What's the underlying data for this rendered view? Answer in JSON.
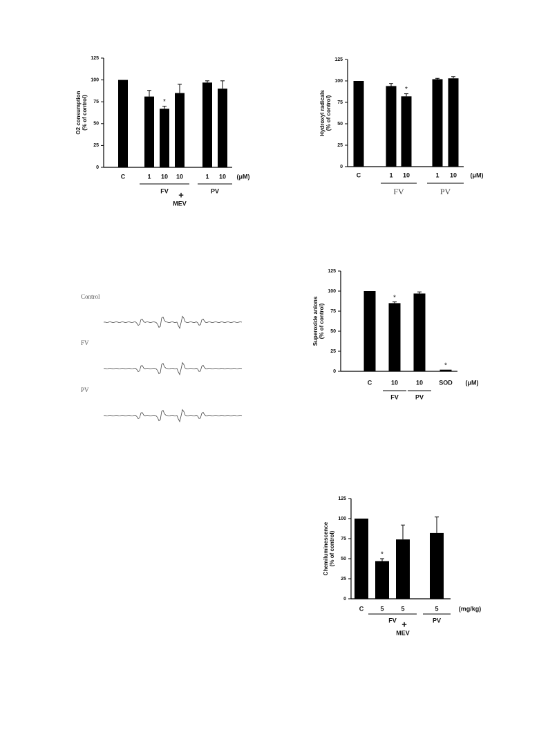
{
  "chart_data": [
    {
      "type": "bar",
      "ylabel": "O2 consumption",
      "ylabel_sub": "(% of control)",
      "categories": [
        "C",
        "1",
        "10",
        "10",
        "1",
        "10"
      ],
      "values": [
        100,
        81,
        67,
        85,
        97,
        90
      ],
      "errors": [
        null,
        7,
        3,
        10,
        2,
        9
      ],
      "value_annotations": [
        null,
        null,
        "*",
        null,
        null,
        null
      ],
      "groups": [
        "FV",
        "PV"
      ],
      "combination": {
        "symbol": "+",
        "label": "MEV"
      },
      "unit": "(μM)",
      "color": "#000000",
      "ylim": [
        0,
        125
      ],
      "yticks": [
        0,
        25,
        50,
        75,
        100,
        125
      ]
    },
    {
      "type": "bar",
      "ylabel": "Hydroxyl radicals",
      "ylabel_sub": "(% of control)",
      "categories": [
        "C",
        "1",
        "10",
        "1",
        "10"
      ],
      "values": [
        100,
        94,
        82,
        102,
        103
      ],
      "errors": [
        null,
        3,
        3,
        1,
        2
      ],
      "value_annotations": [
        null,
        null,
        "*",
        null,
        null
      ],
      "groups": [
        "FV",
        "PV"
      ],
      "unit": "(μM)",
      "color": "#000000",
      "ylim": [
        0,
        125
      ],
      "yticks": [
        0,
        25,
        50,
        75,
        100,
        125
      ]
    },
    {
      "type": "bar",
      "ylabel": "Superoxide anions",
      "ylabel_sub": "(% of control)",
      "categories": [
        "C",
        "10",
        "10",
        "SOD"
      ],
      "values": [
        100,
        85,
        97,
        2
      ],
      "errors": [
        null,
        1.5,
        2,
        null
      ],
      "value_annotations": [
        null,
        "*",
        null,
        "*"
      ],
      "groups": [
        "FV",
        "PV"
      ],
      "unit": "(μM)",
      "color": "#000000",
      "ylim": [
        0,
        125
      ],
      "yticks": [
        0,
        25,
        50,
        75,
        100,
        125
      ]
    },
    {
      "type": "bar",
      "ylabel": "Chemiluminescence",
      "ylabel_sub": "(% of control)",
      "categories": [
        "C",
        "5",
        "5",
        "5"
      ],
      "values": [
        100,
        47,
        74,
        82
      ],
      "errors": [
        null,
        3,
        18,
        20
      ],
      "value_annotations": [
        null,
        "*",
        null,
        null
      ],
      "groups": [
        "FV",
        "PV"
      ],
      "combination": {
        "symbol": "+",
        "label": "MEV"
      },
      "unit": "(mg/kg)",
      "color": "#000000",
      "ylim": [
        0,
        125
      ],
      "yticks": [
        0,
        25,
        50,
        75,
        100,
        125
      ]
    }
  ],
  "esr_traces": {
    "labels": [
      "Control",
      "FV",
      "PV"
    ]
  }
}
